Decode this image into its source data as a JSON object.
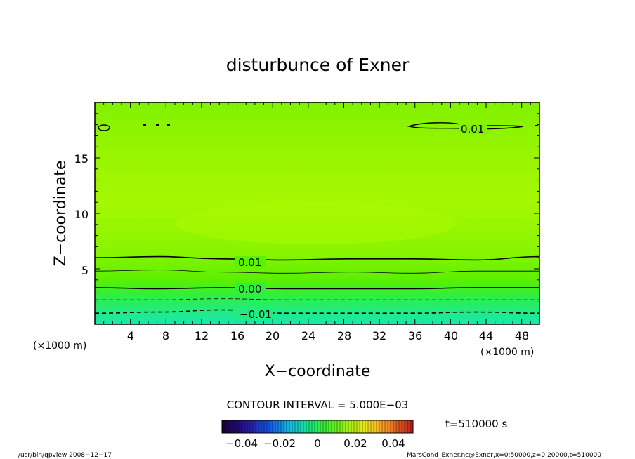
{
  "chart_data": {
    "type": "contour",
    "title": "disturbunce of Exner",
    "xlabel": "X−coordinate",
    "ylabel": "Z−coordinate",
    "x_unit": "(×1000 m)",
    "y_unit": "(×1000 m)",
    "xlim": [
      0,
      50
    ],
    "ylim": [
      0,
      20
    ],
    "x_ticks": [
      "4",
      "8",
      "12",
      "16",
      "20",
      "24",
      "28",
      "32",
      "36",
      "40",
      "44",
      "48"
    ],
    "y_ticks": [
      "5",
      "10",
      "15"
    ],
    "contour_interval_label": "CONTOUR INTERVAL = 5.000E−03",
    "time_label": "t=510000 s",
    "colorbar_ticks": [
      "−0.04",
      "−0.02",
      "0",
      "0.02",
      "0.04"
    ],
    "colorbar_range": [
      -0.05,
      0.05
    ],
    "contour_labels": [
      "0.01",
      "0.00",
      "−0.01",
      "0.01"
    ],
    "fill_colors": [
      "#18e8a8",
      "#22ec78",
      "#30ee40",
      "#50f000",
      "#70f400",
      "#8cf400",
      "#a0f800"
    ],
    "contours": [
      {
        "level": 0.01,
        "style": "thick",
        "z": [
          6.0,
          6.1,
          5.9,
          5.8,
          5.9,
          5.9,
          5.8,
          6.1
        ]
      },
      {
        "level": 0.005,
        "style": "thin",
        "z": [
          4.8,
          4.9,
          4.7,
          4.6,
          4.7,
          4.6,
          4.8,
          4.8
        ]
      },
      {
        "level": 0.0,
        "style": "thick",
        "z": [
          3.3,
          3.2,
          3.3,
          3.2,
          3.2,
          3.2,
          3.3,
          3.3
        ]
      },
      {
        "level": -0.005,
        "style": "dashed-thin",
        "z": [
          2.2,
          2.2,
          2.3,
          2.2,
          2.2,
          2.2,
          2.2,
          2.2
        ]
      },
      {
        "level": -0.01,
        "style": "dashed",
        "z": [
          1.0,
          1.1,
          1.3,
          1.0,
          1.0,
          1.0,
          1.1,
          1.0
        ]
      }
    ]
  },
  "footer": {
    "left": "/usr/bin/gpview   2008−12−17",
    "right": "MarsCond_Exner.nc@Exner,x=0:50000,z=0:20000,t=510000"
  }
}
